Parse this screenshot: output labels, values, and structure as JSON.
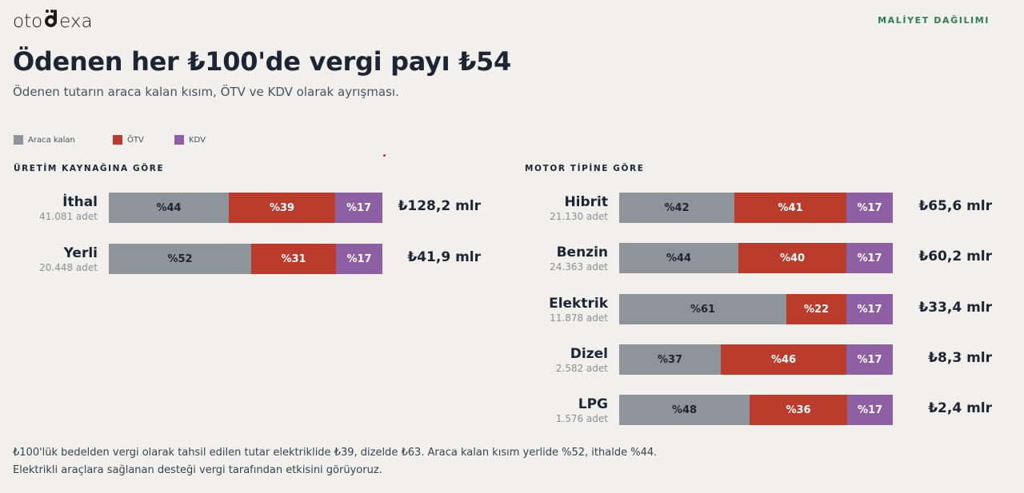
{
  "brand": {
    "logo_left": "oto",
    "logo_right": "exa"
  },
  "header": {
    "tag": "MALİYET DAĞILIMI",
    "title": "Ödenen her ₺100'de vergi payı ₺54",
    "subtitle": "Ödenen tutarın araca kalan kısım, ÖTV ve KDV olarak ayrışması."
  },
  "legend": [
    {
      "label": "Araca kalan",
      "color": "#8e959a"
    },
    {
      "label": "ÖTV",
      "color": "#bb3b2c"
    },
    {
      "label": "KDV",
      "color": "#8d5fa3"
    }
  ],
  "chart_data": [
    {
      "type": "bar",
      "stacked": true,
      "orientation": "horizontal",
      "title": "ÜRETİM KAYNAĞINA GÖRE",
      "categories": [
        "İthal",
        "Yerli"
      ],
      "counts": [
        "41.081 adet",
        "20.448 adet"
      ],
      "totals": [
        "₺128,2 mlr",
        "₺41,9 mlr"
      ],
      "series": [
        {
          "name": "Araca kalan",
          "values": [
            44,
            52
          ]
        },
        {
          "name": "ÖTV",
          "values": [
            39,
            31
          ]
        },
        {
          "name": "KDV",
          "values": [
            17,
            17
          ]
        }
      ],
      "xlim": [
        0,
        100
      ]
    },
    {
      "type": "bar",
      "stacked": true,
      "orientation": "horizontal",
      "title": "MOTOR TİPİNE GÖRE",
      "categories": [
        "Hibrit",
        "Benzin",
        "Elektrik",
        "Dizel",
        "LPG"
      ],
      "counts": [
        "21.130 adet",
        "24.363 adet",
        "11.878 adet",
        "2.582 adet",
        "1.576 adet"
      ],
      "totals": [
        "₺65,6 mlr",
        "₺60,2 mlr",
        "₺33,4 mlr",
        "₺8,3 mlr",
        "₺2,4 mlr"
      ],
      "series": [
        {
          "name": "Araca kalan",
          "values": [
            42,
            44,
            61,
            37,
            48
          ]
        },
        {
          "name": "ÖTV",
          "values": [
            41,
            40,
            22,
            46,
            36
          ]
        },
        {
          "name": "KDV",
          "values": [
            17,
            17,
            17,
            17,
            17
          ]
        }
      ],
      "xlim": [
        0,
        100
      ]
    }
  ],
  "footnote": {
    "line1": "₺100'lük bedelden vergi olarak tahsil edilen tutar elektriklide ₺39, dizelde ₺63. Araca kalan kısım yerlide %52, ithalde %44.",
    "line2": "Elektrikli araçlara sağlanan desteği vergi tarafından etkisini görüyoruz."
  }
}
